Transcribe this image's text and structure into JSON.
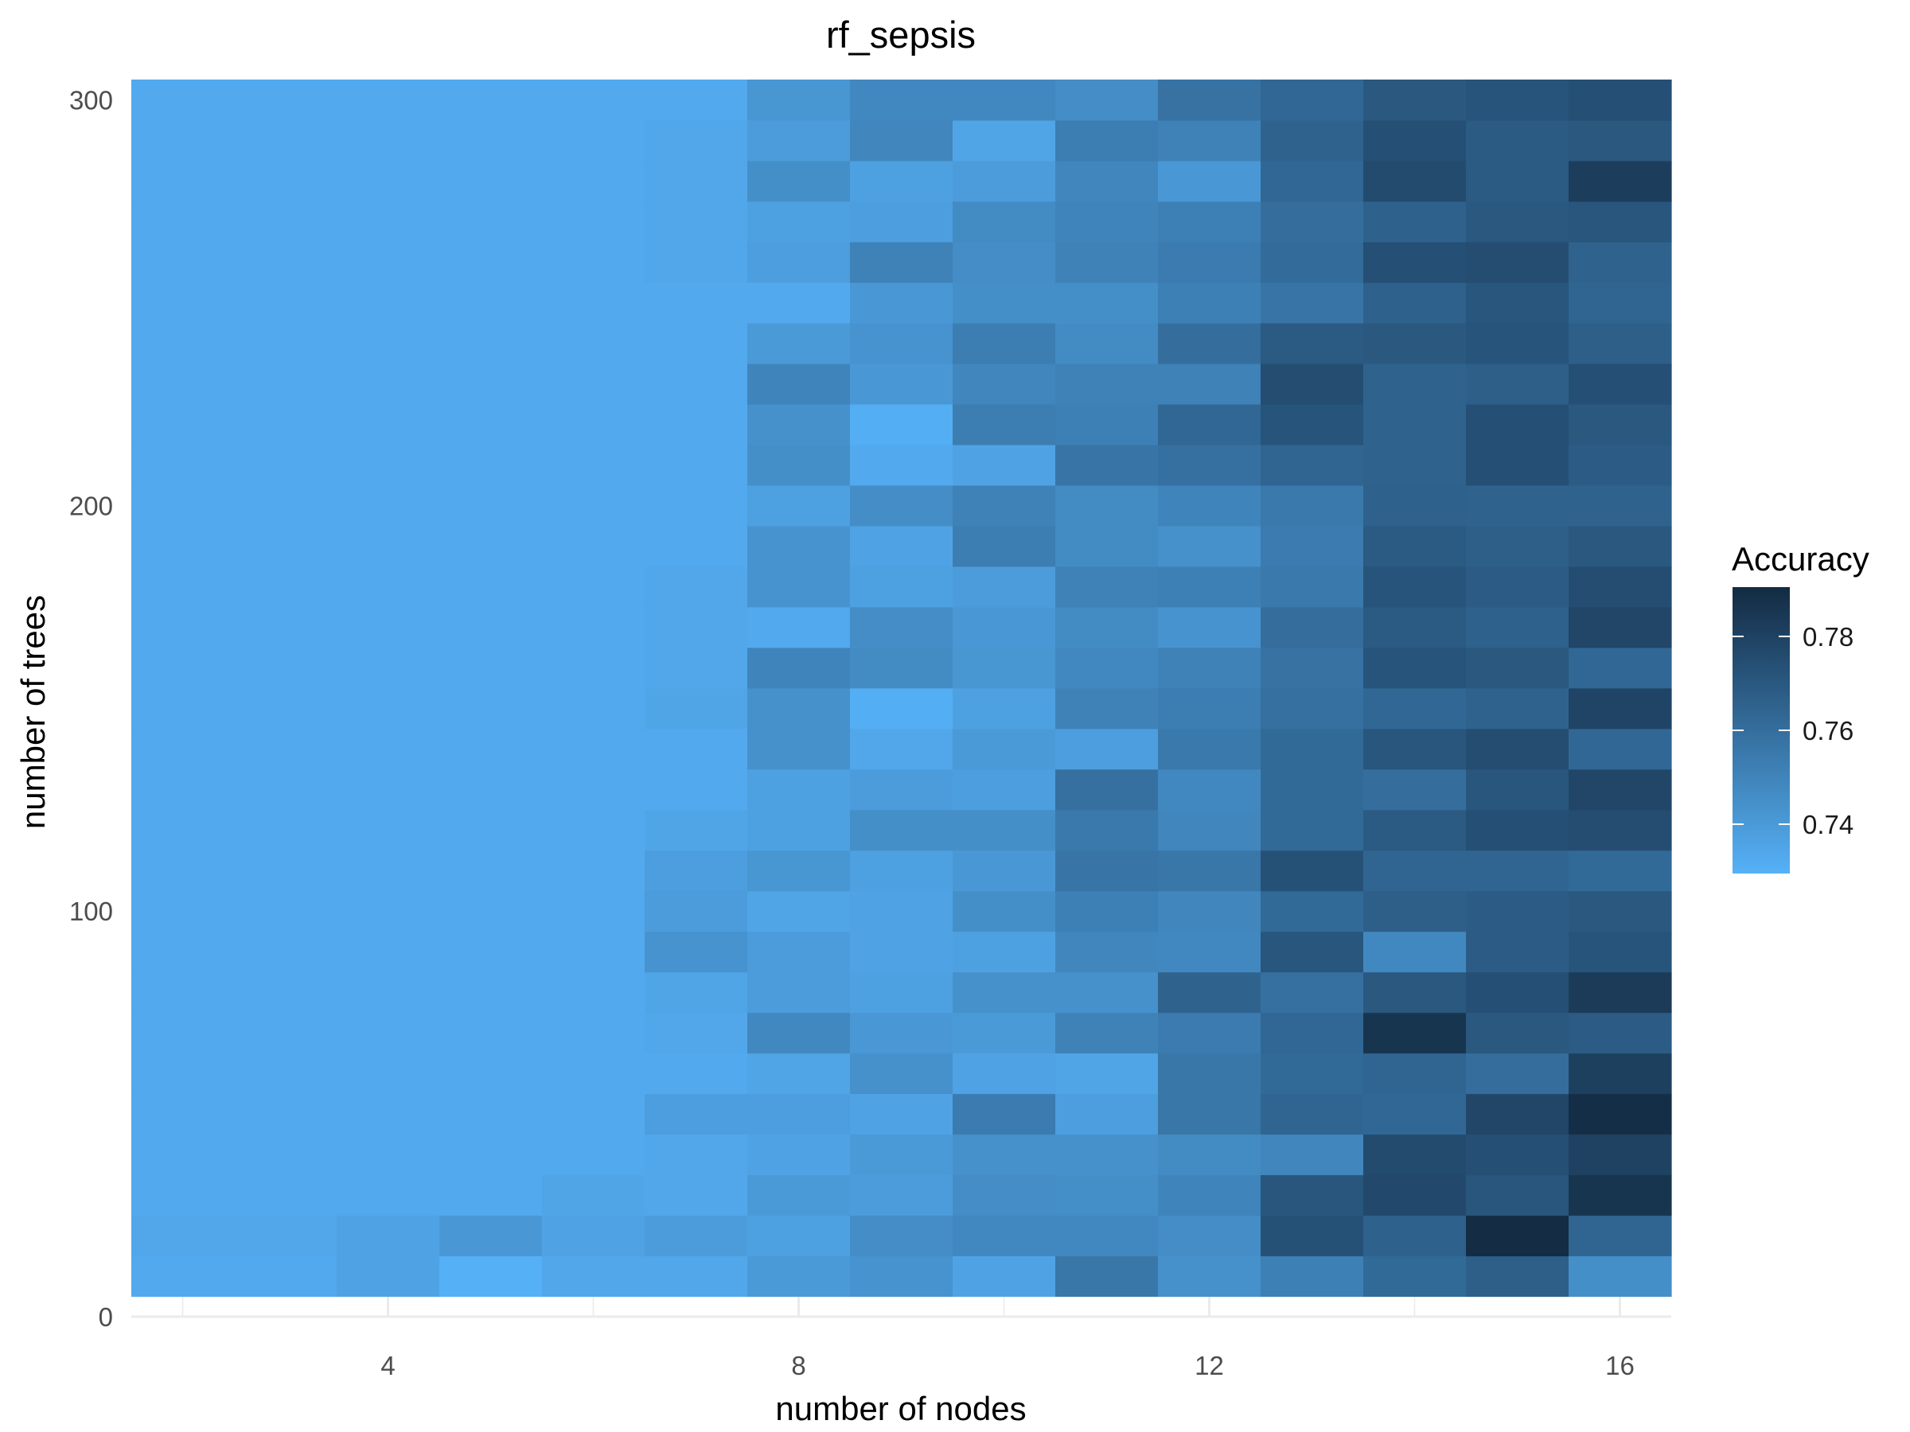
{
  "chart_data": {
    "type": "heatmap",
    "title": "rf_sepsis",
    "xlabel": "number of nodes",
    "ylabel": "number of trees",
    "x_ticks": [
      4,
      8,
      12,
      16
    ],
    "y_ticks": [
      0,
      100,
      200,
      300
    ],
    "x_values": [
      2,
      3,
      4,
      5,
      6,
      7,
      8,
      9,
      10,
      11,
      12,
      13,
      14,
      15,
      16
    ],
    "y_values": [
      10,
      20,
      30,
      40,
      50,
      60,
      70,
      80,
      90,
      100,
      110,
      120,
      130,
      140,
      150,
      160,
      170,
      180,
      190,
      200,
      210,
      220,
      230,
      240,
      250,
      260,
      270,
      280,
      290,
      300
    ],
    "xlim": [
      1.5,
      16.5
    ],
    "ylim": [
      0,
      305
    ],
    "color_scale": {
      "name": "Accuracy",
      "low_color": "#56B1F7",
      "high_color": "#132B43",
      "range": [
        0.7295,
        0.7905
      ],
      "ticks": [
        0.74,
        0.76,
        0.78
      ],
      "tick_labels": [
        "0.74",
        "0.76",
        "0.78"
      ]
    },
    "legend_position": "right",
    "grid": true,
    "z": [
      [
        0.733,
        0.733,
        0.736,
        0.73,
        0.734,
        0.734,
        0.74,
        0.743,
        0.736,
        0.756,
        0.744,
        0.752,
        0.762,
        0.767,
        0.745
      ],
      [
        0.734,
        0.734,
        0.736,
        0.741,
        0.736,
        0.739,
        0.737,
        0.746,
        0.748,
        0.748,
        0.746,
        0.773,
        0.766,
        0.79,
        0.764
      ],
      [
        0.733,
        0.733,
        0.733,
        0.733,
        0.735,
        0.734,
        0.74,
        0.739,
        0.746,
        0.745,
        0.75,
        0.771,
        0.777,
        0.771,
        0.786
      ],
      [
        0.733,
        0.733,
        0.733,
        0.733,
        0.733,
        0.734,
        0.736,
        0.74,
        0.744,
        0.744,
        0.747,
        0.749,
        0.776,
        0.774,
        0.78
      ],
      [
        0.733,
        0.733,
        0.733,
        0.733,
        0.733,
        0.738,
        0.738,
        0.736,
        0.754,
        0.738,
        0.756,
        0.764,
        0.763,
        0.778,
        0.789
      ],
      [
        0.733,
        0.733,
        0.733,
        0.733,
        0.733,
        0.733,
        0.735,
        0.744,
        0.736,
        0.735,
        0.756,
        0.762,
        0.764,
        0.76,
        0.781
      ],
      [
        0.733,
        0.733,
        0.733,
        0.733,
        0.733,
        0.734,
        0.748,
        0.741,
        0.74,
        0.751,
        0.754,
        0.763,
        0.786,
        0.77,
        0.768
      ],
      [
        0.733,
        0.733,
        0.733,
        0.733,
        0.733,
        0.735,
        0.739,
        0.737,
        0.744,
        0.744,
        0.765,
        0.759,
        0.77,
        0.774,
        0.783
      ],
      [
        0.733,
        0.733,
        0.733,
        0.733,
        0.733,
        0.743,
        0.739,
        0.736,
        0.737,
        0.749,
        0.748,
        0.771,
        0.748,
        0.768,
        0.772
      ],
      [
        0.733,
        0.733,
        0.733,
        0.733,
        0.733,
        0.739,
        0.735,
        0.736,
        0.745,
        0.752,
        0.749,
        0.762,
        0.767,
        0.768,
        0.77
      ],
      [
        0.733,
        0.733,
        0.733,
        0.733,
        0.733,
        0.738,
        0.742,
        0.737,
        0.741,
        0.757,
        0.756,
        0.773,
        0.764,
        0.764,
        0.762
      ],
      [
        0.733,
        0.733,
        0.733,
        0.733,
        0.733,
        0.735,
        0.737,
        0.745,
        0.745,
        0.755,
        0.749,
        0.762,
        0.769,
        0.774,
        0.775
      ],
      [
        0.733,
        0.733,
        0.733,
        0.733,
        0.733,
        0.733,
        0.737,
        0.739,
        0.738,
        0.759,
        0.748,
        0.762,
        0.76,
        0.771,
        0.778
      ],
      [
        0.733,
        0.733,
        0.733,
        0.733,
        0.733,
        0.733,
        0.744,
        0.734,
        0.74,
        0.738,
        0.755,
        0.762,
        0.771,
        0.775,
        0.763
      ],
      [
        0.733,
        0.733,
        0.733,
        0.733,
        0.733,
        0.735,
        0.744,
        0.731,
        0.737,
        0.751,
        0.753,
        0.759,
        0.763,
        0.765,
        0.779
      ],
      [
        0.733,
        0.733,
        0.733,
        0.733,
        0.733,
        0.734,
        0.75,
        0.747,
        0.742,
        0.748,
        0.751,
        0.758,
        0.772,
        0.77,
        0.763
      ],
      [
        0.733,
        0.733,
        0.733,
        0.733,
        0.733,
        0.734,
        0.733,
        0.746,
        0.741,
        0.747,
        0.743,
        0.76,
        0.769,
        0.766,
        0.778
      ],
      [
        0.733,
        0.733,
        0.733,
        0.733,
        0.733,
        0.734,
        0.743,
        0.737,
        0.739,
        0.751,
        0.752,
        0.755,
        0.772,
        0.768,
        0.775
      ],
      [
        0.733,
        0.733,
        0.733,
        0.733,
        0.733,
        0.733,
        0.743,
        0.736,
        0.753,
        0.747,
        0.744,
        0.754,
        0.769,
        0.767,
        0.77
      ],
      [
        0.733,
        0.733,
        0.733,
        0.733,
        0.733,
        0.733,
        0.737,
        0.746,
        0.751,
        0.747,
        0.75,
        0.755,
        0.766,
        0.765,
        0.765
      ],
      [
        0.733,
        0.733,
        0.733,
        0.733,
        0.733,
        0.733,
        0.745,
        0.733,
        0.736,
        0.757,
        0.759,
        0.764,
        0.765,
        0.774,
        0.768
      ],
      [
        0.733,
        0.733,
        0.733,
        0.733,
        0.733,
        0.733,
        0.744,
        0.731,
        0.753,
        0.752,
        0.763,
        0.772,
        0.765,
        0.774,
        0.77
      ],
      [
        0.733,
        0.733,
        0.733,
        0.733,
        0.733,
        0.733,
        0.75,
        0.741,
        0.749,
        0.751,
        0.751,
        0.775,
        0.765,
        0.767,
        0.774
      ],
      [
        0.733,
        0.733,
        0.733,
        0.733,
        0.733,
        0.733,
        0.74,
        0.743,
        0.753,
        0.747,
        0.76,
        0.769,
        0.77,
        0.772,
        0.767
      ],
      [
        0.733,
        0.733,
        0.733,
        0.733,
        0.733,
        0.733,
        0.733,
        0.741,
        0.745,
        0.745,
        0.752,
        0.757,
        0.766,
        0.771,
        0.764
      ],
      [
        0.733,
        0.733,
        0.733,
        0.733,
        0.733,
        0.734,
        0.738,
        0.751,
        0.746,
        0.751,
        0.754,
        0.761,
        0.774,
        0.775,
        0.765
      ],
      [
        0.733,
        0.733,
        0.733,
        0.733,
        0.733,
        0.734,
        0.737,
        0.738,
        0.747,
        0.75,
        0.752,
        0.76,
        0.766,
        0.77,
        0.771
      ],
      [
        0.733,
        0.733,
        0.733,
        0.733,
        0.733,
        0.734,
        0.745,
        0.737,
        0.739,
        0.749,
        0.741,
        0.763,
        0.776,
        0.769,
        0.782
      ],
      [
        0.733,
        0.733,
        0.733,
        0.733,
        0.733,
        0.734,
        0.739,
        0.749,
        0.735,
        0.753,
        0.751,
        0.765,
        0.774,
        0.769,
        0.77
      ],
      [
        0.733,
        0.733,
        0.733,
        0.733,
        0.733,
        0.733,
        0.742,
        0.748,
        0.748,
        0.746,
        0.758,
        0.763,
        0.77,
        0.772,
        0.774
      ]
    ]
  }
}
